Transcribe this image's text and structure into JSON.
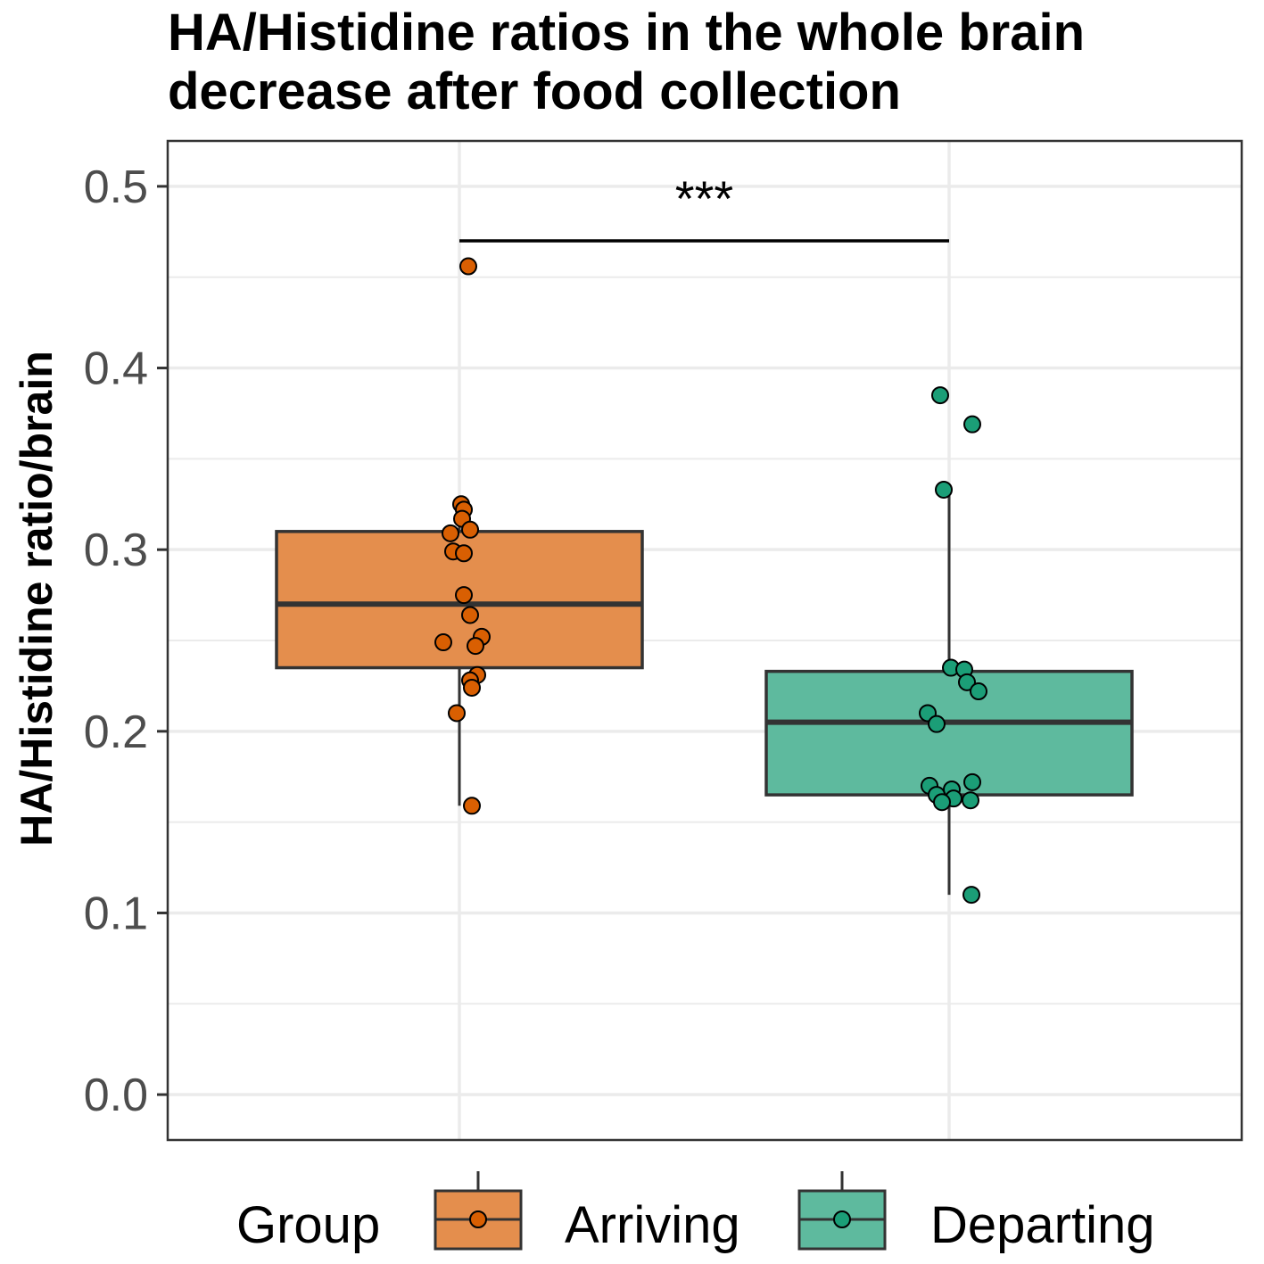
{
  "chart_data": {
    "type": "box",
    "title": "HA/Histidine ratios in the whole brain decrease after food collection",
    "xlabel": "",
    "ylabel": "HA/Histidine ratio/brain",
    "ylim": [
      -0.025,
      0.525
    ],
    "yticks": [
      "0.0",
      "0.1",
      "0.2",
      "0.3",
      "0.4",
      "0.5"
    ],
    "grid": true,
    "legend": {
      "title": "Group",
      "position": "bottom"
    },
    "significance": {
      "label": "***",
      "from": "Arriving",
      "to": "Departing",
      "y": 0.47
    },
    "groups": [
      {
        "name": "Arriving",
        "color": "#D95F02",
        "box_fill": "#E48E4D",
        "box": {
          "min": 0.159,
          "q1": 0.235,
          "median": 0.27,
          "q3": 0.31,
          "max": 0.325
        },
        "points": [
          0.456,
          0.325,
          0.322,
          0.317,
          0.311,
          0.309,
          0.299,
          0.298,
          0.275,
          0.264,
          0.252,
          0.249,
          0.247,
          0.231,
          0.228,
          0.224,
          0.21,
          0.159
        ]
      },
      {
        "name": "Departing",
        "color": "#1B9E77",
        "box_fill": "#5EBA9E",
        "box": {
          "min": 0.11,
          "q1": 0.165,
          "median": 0.205,
          "q3": 0.233,
          "max": 0.333
        },
        "points": [
          0.385,
          0.369,
          0.333,
          0.235,
          0.234,
          0.227,
          0.222,
          0.21,
          0.204,
          0.172,
          0.17,
          0.168,
          0.165,
          0.163,
          0.162,
          0.161,
          0.11
        ]
      }
    ]
  }
}
